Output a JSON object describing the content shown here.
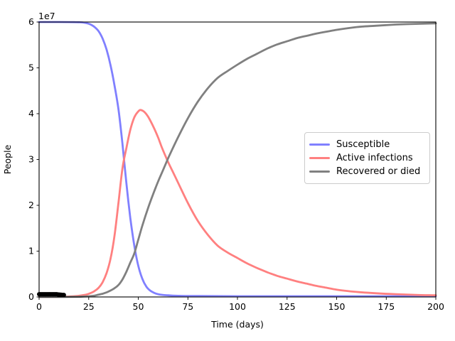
{
  "chart_data": {
    "type": "line",
    "title": "",
    "xlabel": "Time (days)",
    "ylabel": "People",
    "y_offset_label": "1e7",
    "xlim": [
      0,
      200
    ],
    "ylim": [
      0,
      60000000
    ],
    "grid": false,
    "legend_position": "center right",
    "x_tick_labels": [
      "0",
      "25",
      "50",
      "75",
      "100",
      "125",
      "150",
      "175",
      "200"
    ],
    "x_tick_values": [
      0,
      25,
      50,
      75,
      100,
      125,
      150,
      175,
      200
    ],
    "y_tick_labels": [
      "0",
      "1",
      "2",
      "3",
      "4",
      "5",
      "6"
    ],
    "y_tick_values": [
      0,
      10000000,
      20000000,
      30000000,
      40000000,
      50000000,
      60000000
    ],
    "series": [
      {
        "name": "Susceptible",
        "color": "#8080ff",
        "points": [
          [
            0,
            60000000
          ],
          [
            5,
            60000000
          ],
          [
            10,
            60000000
          ],
          [
            15,
            59990000
          ],
          [
            18,
            59970000
          ],
          [
            20,
            59950000
          ],
          [
            22,
            59900000
          ],
          [
            24,
            59750000
          ],
          [
            26,
            59450000
          ],
          [
            28,
            58900000
          ],
          [
            30,
            58000000
          ],
          [
            32,
            56400000
          ],
          [
            34,
            54000000
          ],
          [
            36,
            50600000
          ],
          [
            38,
            46200000
          ],
          [
            40,
            41000000
          ],
          [
            42,
            33500000
          ],
          [
            44,
            24800000
          ],
          [
            46,
            17200000
          ],
          [
            48,
            11200000
          ],
          [
            50,
            6800000
          ],
          [
            52,
            4000000
          ],
          [
            54,
            2300000
          ],
          [
            56,
            1400000
          ],
          [
            58,
            900000
          ],
          [
            60,
            600000
          ],
          [
            65,
            350000
          ],
          [
            70,
            250000
          ],
          [
            80,
            200000
          ],
          [
            100,
            150000
          ],
          [
            125,
            150000
          ],
          [
            150,
            150000
          ],
          [
            175,
            150000
          ],
          [
            200,
            150000
          ]
        ]
      },
      {
        "name": "Active infections",
        "color": "#ff8080",
        "points": [
          [
            0,
            20000
          ],
          [
            5,
            30000
          ],
          [
            10,
            50000
          ],
          [
            15,
            100000
          ],
          [
            20,
            250000
          ],
          [
            24,
            550000
          ],
          [
            26,
            850000
          ],
          [
            28,
            1300000
          ],
          [
            30,
            2000000
          ],
          [
            32,
            3200000
          ],
          [
            34,
            5200000
          ],
          [
            36,
            8300000
          ],
          [
            38,
            13300000
          ],
          [
            40,
            20500000
          ],
          [
            42,
            28000000
          ],
          [
            44,
            32500000
          ],
          [
            46,
            36500000
          ],
          [
            48,
            39200000
          ],
          [
            50,
            40500000
          ],
          [
            51,
            40800000
          ],
          [
            53,
            40400000
          ],
          [
            55,
            39300000
          ],
          [
            58,
            36800000
          ],
          [
            60,
            34800000
          ],
          [
            62,
            32500000
          ],
          [
            65,
            29500000
          ],
          [
            68,
            26800000
          ],
          [
            70,
            25000000
          ],
          [
            75,
            20500000
          ],
          [
            80,
            16600000
          ],
          [
            85,
            13600000
          ],
          [
            90,
            11200000
          ],
          [
            95,
            9700000
          ],
          [
            100,
            8500000
          ],
          [
            105,
            7300000
          ],
          [
            110,
            6300000
          ],
          [
            115,
            5400000
          ],
          [
            120,
            4600000
          ],
          [
            125,
            4000000
          ],
          [
            130,
            3400000
          ],
          [
            135,
            2900000
          ],
          [
            140,
            2400000
          ],
          [
            145,
            2000000
          ],
          [
            150,
            1600000
          ],
          [
            160,
            1100000
          ],
          [
            170,
            800000
          ],
          [
            180,
            600000
          ],
          [
            190,
            450000
          ],
          [
            200,
            350000
          ]
        ]
      },
      {
        "name": "Recovered or died",
        "color": "#808080",
        "points": [
          [
            0,
            0
          ],
          [
            10,
            0
          ],
          [
            15,
            20000
          ],
          [
            20,
            50000
          ],
          [
            25,
            150000
          ],
          [
            28,
            300000
          ],
          [
            30,
            500000
          ],
          [
            32,
            700000
          ],
          [
            34,
            1000000
          ],
          [
            36,
            1400000
          ],
          [
            38,
            1900000
          ],
          [
            40,
            2600000
          ],
          [
            42,
            3800000
          ],
          [
            44,
            5500000
          ],
          [
            46,
            7500000
          ],
          [
            48,
            9500000
          ],
          [
            50,
            12500000
          ],
          [
            52,
            15500000
          ],
          [
            55,
            19500000
          ],
          [
            58,
            23000000
          ],
          [
            60,
            25200000
          ],
          [
            62,
            27200000
          ],
          [
            65,
            30200000
          ],
          [
            68,
            33000000
          ],
          [
            70,
            34800000
          ],
          [
            75,
            39000000
          ],
          [
            80,
            42600000
          ],
          [
            85,
            45500000
          ],
          [
            90,
            47800000
          ],
          [
            95,
            49300000
          ],
          [
            100,
            50700000
          ],
          [
            105,
            52000000
          ],
          [
            110,
            53100000
          ],
          [
            115,
            54200000
          ],
          [
            120,
            55100000
          ],
          [
            125,
            55800000
          ],
          [
            130,
            56500000
          ],
          [
            135,
            57000000
          ],
          [
            140,
            57500000
          ],
          [
            145,
            57900000
          ],
          [
            150,
            58300000
          ],
          [
            160,
            58900000
          ],
          [
            170,
            59200000
          ],
          [
            180,
            59450000
          ],
          [
            190,
            59600000
          ],
          [
            200,
            59700000
          ]
        ]
      }
    ],
    "observed_data": {
      "name": "observed cases (black dots near origin)",
      "color": "#000000",
      "marker": "dot",
      "points": [
        [
          0,
          600000
        ],
        [
          0.5,
          600000
        ],
        [
          1,
          600000
        ],
        [
          1.5,
          600000
        ],
        [
          2,
          600000
        ],
        [
          2.5,
          600000
        ],
        [
          3,
          600000
        ],
        [
          3.5,
          600000
        ],
        [
          4,
          600000
        ],
        [
          4.5,
          600000
        ],
        [
          5,
          600000
        ],
        [
          5.5,
          600000
        ],
        [
          6,
          600000
        ],
        [
          6.5,
          600000
        ],
        [
          7,
          600000
        ],
        [
          7.5,
          600000
        ],
        [
          8,
          600000
        ],
        [
          8.5,
          600000
        ],
        [
          9,
          600000
        ],
        [
          9.5,
          550000
        ],
        [
          10,
          550000
        ],
        [
          10.5,
          500000
        ],
        [
          11,
          500000
        ],
        [
          11.5,
          450000
        ],
        [
          12,
          450000
        ],
        [
          12.5,
          450000
        ]
      ]
    }
  }
}
